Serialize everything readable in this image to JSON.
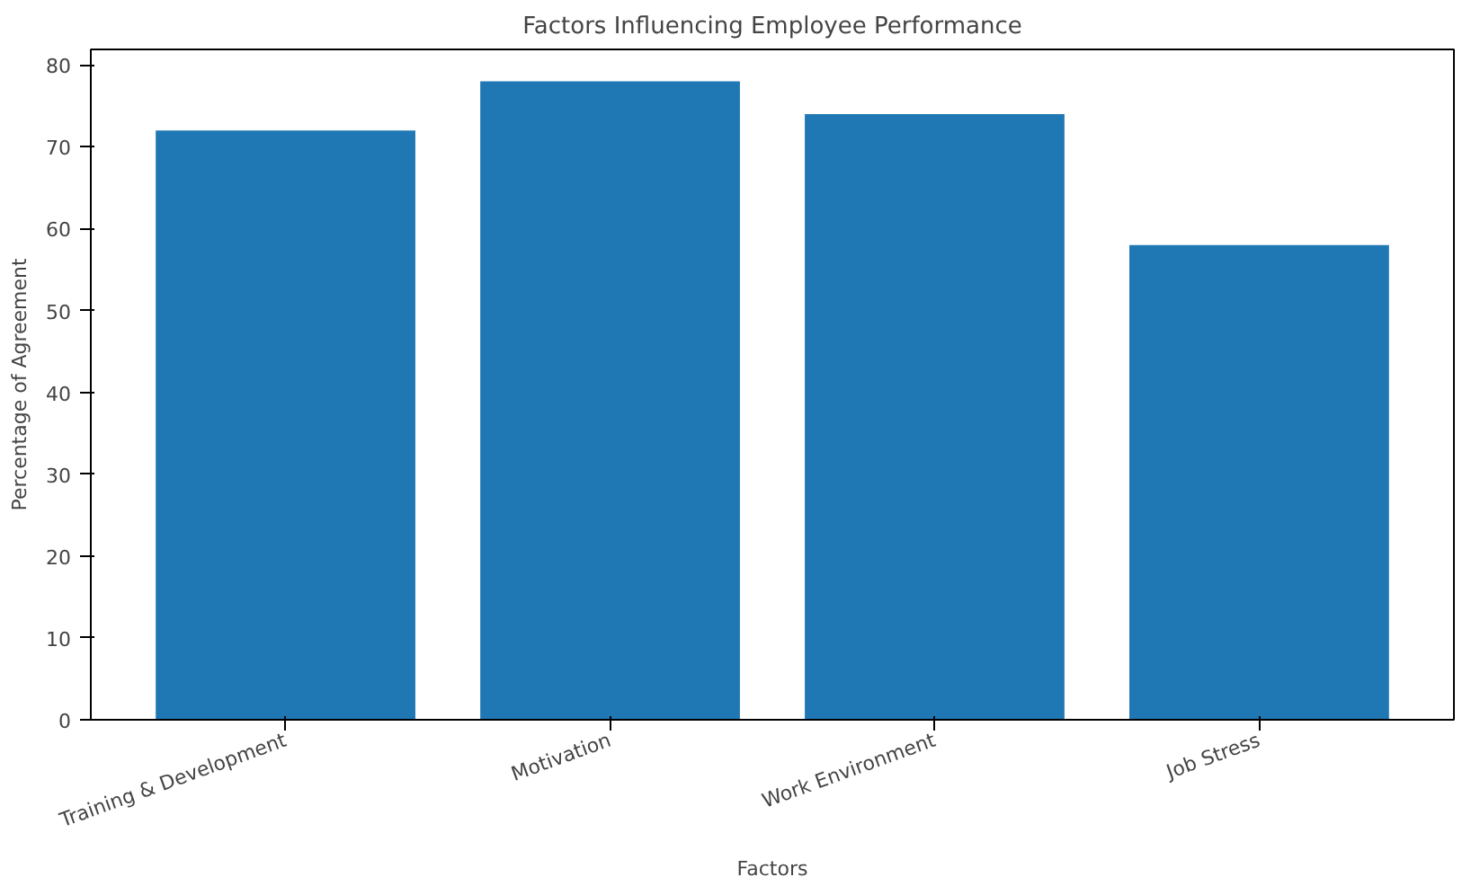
{
  "chart_data": {
    "type": "bar",
    "title": "Factors Influencing Employee Performance",
    "xlabel": "Factors",
    "ylabel": "Percentage of Agreement",
    "categories": [
      "Training & Development",
      "Motivation",
      "Work Environment",
      "Job Stress"
    ],
    "values": [
      72,
      78,
      74,
      58
    ],
    "color": "#1f77b4",
    "ylim": [
      0,
      81.9
    ],
    "yticks": [
      0,
      10,
      20,
      30,
      40,
      50,
      60,
      70,
      80
    ],
    "grid": false
  }
}
